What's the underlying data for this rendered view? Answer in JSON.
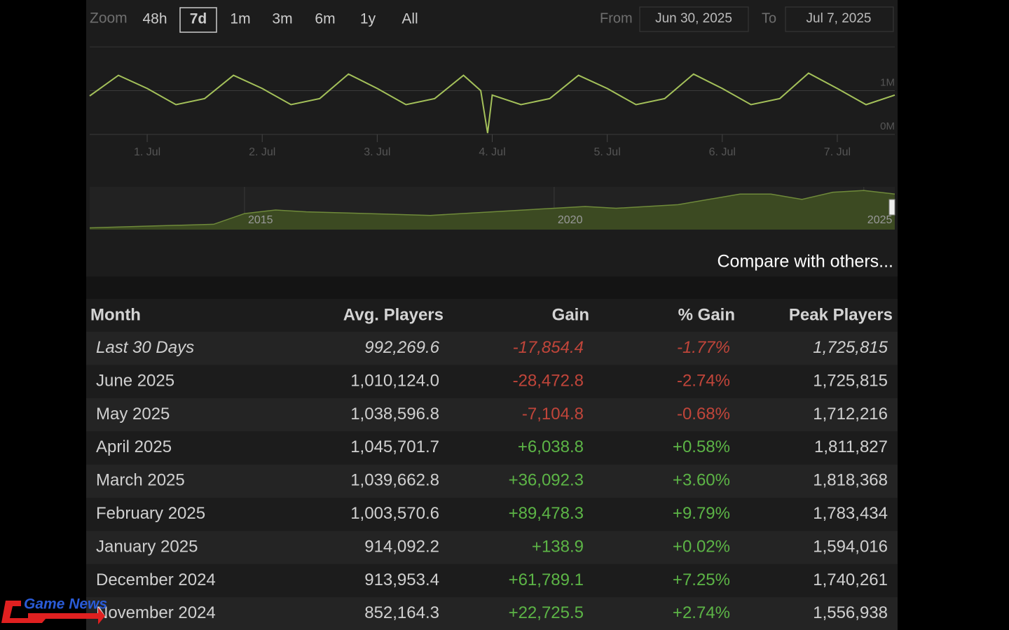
{
  "zoom": {
    "label": "Zoom",
    "options": [
      "48h",
      "7d",
      "1m",
      "3m",
      "6m",
      "1y",
      "All"
    ],
    "selected_index": 1
  },
  "range": {
    "from_label": "From",
    "from": "Jun 30, 2025",
    "to_label": "To",
    "to": "Jul 7, 2025"
  },
  "chart_data": [
    {
      "type": "line",
      "color": "#a4c15a",
      "x": [
        -0.5,
        -0.25,
        0,
        0.25,
        0.5,
        0.75,
        1,
        1.25,
        1.5,
        1.75,
        2,
        2.25,
        2.5,
        2.75,
        2.9,
        2.96,
        3.0,
        3.25,
        3.5,
        3.75,
        4,
        4.25,
        4.5,
        4.75,
        5,
        5.25,
        5.5,
        5.75,
        6,
        6.25,
        6.5
      ],
      "values": [
        0.88,
        1.35,
        1.05,
        0.68,
        0.82,
        1.35,
        1.05,
        0.68,
        0.82,
        1.38,
        1.05,
        0.68,
        0.82,
        1.35,
        1.0,
        0.03,
        0.9,
        0.68,
        0.82,
        1.35,
        1.05,
        0.68,
        0.82,
        1.38,
        1.05,
        0.68,
        0.82,
        1.4,
        1.05,
        0.68,
        0.9
      ],
      "xlim": [
        -0.5,
        6.5
      ],
      "xticks": [
        {
          "value": 0,
          "label": "1. Jul"
        },
        {
          "value": 1,
          "label": "2. Jul"
        },
        {
          "value": 2,
          "label": "3. Jul"
        },
        {
          "value": 3,
          "label": "4. Jul"
        },
        {
          "value": 4,
          "label": "5. Jul"
        },
        {
          "value": 5,
          "label": "6. Jul"
        },
        {
          "value": 6,
          "label": "7. Jul"
        }
      ],
      "ylim": [
        0,
        2
      ],
      "yticks": [
        {
          "value": 0,
          "label": "0M"
        },
        {
          "value": 1,
          "label": "1M"
        }
      ],
      "grid": true
    },
    {
      "type": "area",
      "color": "#6f8a3a",
      "x": [
        2012.5,
        2013.5,
        2014.5,
        2015,
        2015.5,
        2016,
        2017,
        2018,
        2019,
        2020,
        2020.5,
        2021,
        2022,
        2023,
        2023.5,
        2024,
        2024.5,
        2025,
        2025.5
      ],
      "values": [
        0.05,
        0.1,
        0.15,
        0.45,
        0.55,
        0.5,
        0.45,
        0.4,
        0.5,
        0.6,
        0.65,
        0.6,
        0.7,
        1.0,
        1.0,
        0.85,
        1.05,
        1.1,
        1.0
      ],
      "xlim": [
        2012.5,
        2025.5
      ],
      "xticks": [
        2015,
        2020,
        2025
      ],
      "ylim": [
        0,
        1.2
      ]
    }
  ],
  "compare_link": "Compare with others...",
  "table": {
    "columns": [
      "Month",
      "Avg. Players",
      "Gain",
      "% Gain",
      "Peak Players"
    ],
    "rows": [
      [
        "Last 30 Days",
        "992,269.6",
        "-17,854.4",
        "-1.77%",
        "1,725,815"
      ],
      [
        "June 2025",
        "1,010,124.0",
        "-28,472.8",
        "-2.74%",
        "1,725,815"
      ],
      [
        "May 2025",
        "1,038,596.8",
        "-7,104.8",
        "-0.68%",
        "1,712,216"
      ],
      [
        "April 2025",
        "1,045,701.7",
        "+6,038.8",
        "+0.58%",
        "1,811,827"
      ],
      [
        "March 2025",
        "1,039,662.8",
        "+36,092.3",
        "+3.60%",
        "1,818,368"
      ],
      [
        "February 2025",
        "1,003,570.6",
        "+89,478.3",
        "+9.79%",
        "1,783,434"
      ],
      [
        "January 2025",
        "914,092.2",
        "+138.9",
        "+0.02%",
        "1,594,016"
      ],
      [
        "December 2024",
        "913,953.4",
        "+61,789.1",
        "+7.25%",
        "1,740,261"
      ],
      [
        "November 2024",
        "852,164.3",
        "+22,725.5",
        "+2.74%",
        "1,556,938"
      ]
    ]
  },
  "watermark": "Game News"
}
